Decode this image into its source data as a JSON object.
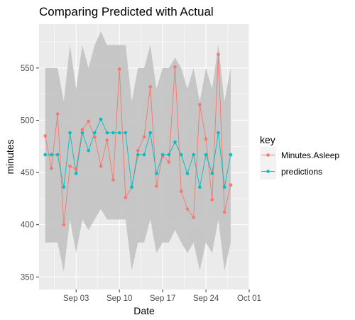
{
  "chart_data": {
    "type": "line",
    "title": "Comparing Predicted with Actual",
    "xlabel": "Date",
    "ylabel": "minutes",
    "x_ticks": [
      "Sep 03",
      "Sep 10",
      "Sep 17",
      "Sep 24",
      "Oct 01"
    ],
    "y_ticks": [
      350,
      400,
      450,
      500,
      550
    ],
    "xlim": [
      "2016-08-28",
      "2016-10-01"
    ],
    "ylim": [
      338,
      592
    ],
    "grid": true,
    "legend": {
      "title": "key",
      "position": "right"
    },
    "x": [
      "2016-08-29",
      "2016-08-30",
      "2016-08-31",
      "2016-09-01",
      "2016-09-02",
      "2016-09-03",
      "2016-09-04",
      "2016-09-05",
      "2016-09-06",
      "2016-09-07",
      "2016-09-08",
      "2016-09-09",
      "2016-09-10",
      "2016-09-11",
      "2016-09-12",
      "2016-09-13",
      "2016-09-14",
      "2016-09-15",
      "2016-09-16",
      "2016-09-17",
      "2016-09-18",
      "2016-09-19",
      "2016-09-20",
      "2016-09-21",
      "2016-09-22",
      "2016-09-23",
      "2016-09-24",
      "2016-09-25",
      "2016-09-26",
      "2016-09-27",
      "2016-09-28",
      "2016-09-29",
      "2016-09-30"
    ],
    "series": [
      {
        "name": "Minutes.Asleep",
        "color": "#f8766d",
        "values": [
          485,
          454,
          506,
          400,
          456,
          453,
          491,
          499,
          484,
          456,
          481,
          443,
          549,
          426,
          436,
          471,
          484,
          532,
          437,
          466,
          460,
          551,
          432,
          415,
          407,
          515,
          482,
          424,
          563,
          412,
          438,
          null,
          null
        ]
      },
      {
        "name": "predictions",
        "color": "#00bfc4",
        "values": [
          467,
          467,
          467,
          436,
          488,
          449,
          488,
          471,
          488,
          501,
          488,
          488,
          488,
          488,
          436,
          467,
          467,
          488,
          449,
          467,
          467,
          479,
          467,
          449,
          467,
          436,
          467,
          449,
          488,
          436,
          467,
          null,
          null
        ]
      }
    ],
    "ribbon": {
      "color": "#c4c4c4",
      "lower": [
        383,
        383,
        383,
        355,
        405,
        373,
        405,
        395,
        405,
        415,
        405,
        405,
        405,
        405,
        356,
        383,
        383,
        405,
        373,
        383,
        383,
        395,
        383,
        373,
        383,
        356,
        383,
        373,
        405,
        356,
        383,
        null,
        null
      ],
      "upper": [
        550,
        550,
        550,
        518,
        572,
        530,
        572,
        550,
        572,
        585,
        572,
        572,
        572,
        572,
        518,
        550,
        550,
        572,
        530,
        550,
        550,
        560,
        550,
        530,
        550,
        518,
        550,
        530,
        572,
        518,
        550,
        null,
        null
      ]
    }
  }
}
